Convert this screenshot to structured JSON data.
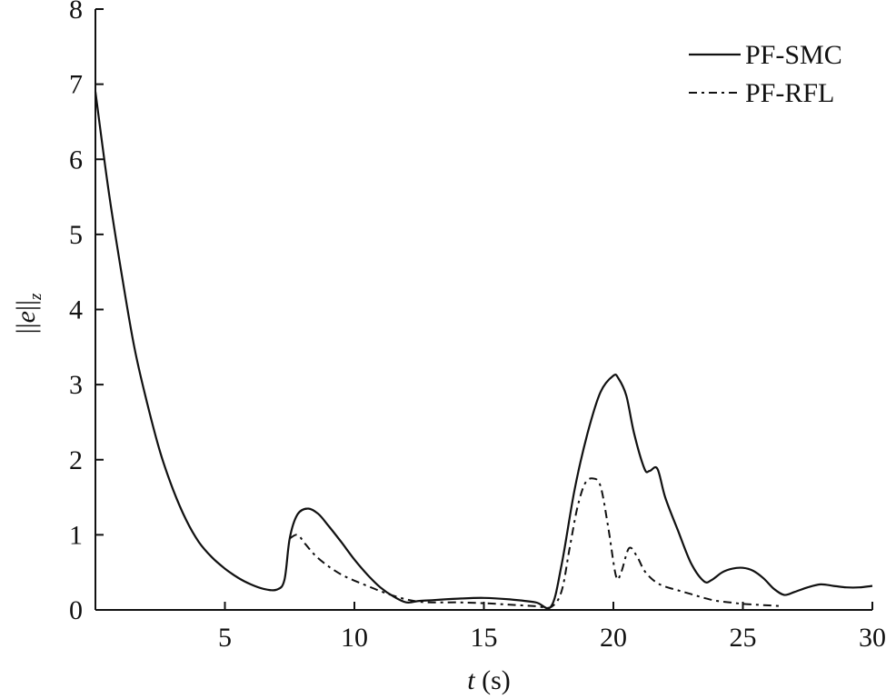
{
  "chart_data": {
    "type": "line",
    "xlabel": "t (s)",
    "xlabel_italic": "t",
    "xlabel_unit": " (s)",
    "ylabel": "||e||z",
    "xlim": [
      0,
      30
    ],
    "ylim": [
      0,
      8
    ],
    "xticks": [
      5,
      10,
      15,
      20,
      25,
      30
    ],
    "yticks": [
      0,
      1,
      2,
      3,
      4,
      5,
      6,
      7,
      8
    ],
    "grid": false,
    "legend_position": "top-right",
    "series": [
      {
        "name": "PF-SMC",
        "style": "solid",
        "x": [
          0,
          0.5,
          1,
          1.5,
          2,
          2.5,
          3,
          3.5,
          4,
          4.5,
          5,
          5.5,
          6,
          6.5,
          7,
          7.3,
          7.5,
          7.8,
          8.2,
          8.6,
          9,
          9.5,
          10,
          10.5,
          11,
          11.5,
          12,
          12.5,
          13,
          14,
          15,
          16,
          17,
          17.6,
          18,
          18.5,
          19,
          19.5,
          20,
          20.2,
          20.5,
          20.8,
          21.2,
          21.4,
          21.7,
          22,
          22.5,
          23,
          23.5,
          23.8,
          24.2,
          24.6,
          25,
          25.4,
          25.8,
          26.2,
          26.6,
          27,
          27.5,
          28,
          28.5,
          29,
          29.5,
          30
        ],
        "y": [
          6.9,
          5.6,
          4.5,
          3.5,
          2.75,
          2.1,
          1.6,
          1.2,
          0.9,
          0.7,
          0.55,
          0.43,
          0.34,
          0.28,
          0.27,
          0.4,
          0.95,
          1.27,
          1.35,
          1.28,
          1.12,
          0.9,
          0.67,
          0.47,
          0.3,
          0.18,
          0.1,
          0.12,
          0.13,
          0.15,
          0.16,
          0.14,
          0.1,
          0.05,
          0.6,
          1.6,
          2.35,
          2.9,
          3.12,
          3.08,
          2.85,
          2.35,
          1.88,
          1.85,
          1.88,
          1.5,
          1.05,
          0.62,
          0.38,
          0.4,
          0.5,
          0.55,
          0.56,
          0.52,
          0.42,
          0.28,
          0.2,
          0.24,
          0.3,
          0.34,
          0.32,
          0.3,
          0.3,
          0.32
        ]
      },
      {
        "name": "PF-RFL",
        "style": "dash-dot",
        "x": [
          7.5,
          7.8,
          8.1,
          8.5,
          9,
          9.5,
          10,
          10.5,
          11,
          11.5,
          12,
          12.5,
          13,
          14,
          15,
          16,
          17,
          17.6,
          18,
          18.3,
          18.6,
          18.9,
          19.2,
          19.5,
          19.8,
          20.1,
          20.3,
          20.6,
          20.9,
          21.2,
          21.6,
          22,
          22.5,
          23,
          23.5,
          24,
          24.5,
          25,
          25.5,
          26,
          26.5
        ],
        "y": [
          0.95,
          1.0,
          0.88,
          0.72,
          0.58,
          0.47,
          0.39,
          0.32,
          0.25,
          0.19,
          0.14,
          0.11,
          0.1,
          0.1,
          0.09,
          0.07,
          0.05,
          0.04,
          0.25,
          0.8,
          1.35,
          1.68,
          1.75,
          1.65,
          1.1,
          0.45,
          0.5,
          0.82,
          0.72,
          0.52,
          0.38,
          0.31,
          0.26,
          0.21,
          0.16,
          0.12,
          0.1,
          0.08,
          0.07,
          0.06,
          0.05
        ]
      }
    ]
  }
}
